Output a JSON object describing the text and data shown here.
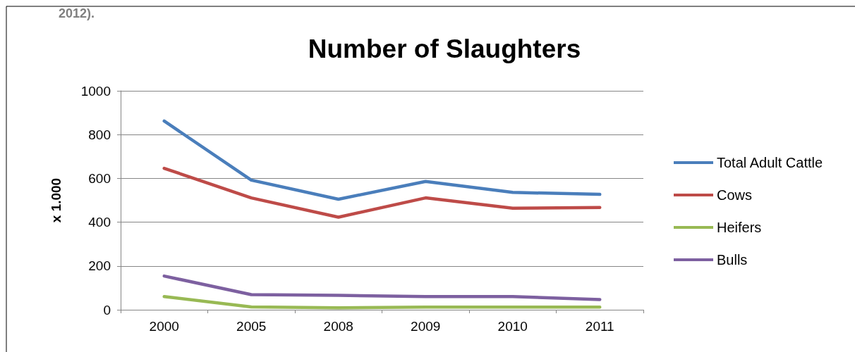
{
  "chart_data": {
    "type": "line",
    "title": "Number of Slaughters",
    "ylabel": "x 1.000",
    "annotations": [
      "2012)."
    ],
    "categories": [
      "2000",
      "2005",
      "2008",
      "2009",
      "2010",
      "2011"
    ],
    "series": [
      {
        "name": "Total Adult Cattle",
        "color": "#4a7ebb",
        "values": [
          862,
          592,
          505,
          586,
          536,
          527
        ]
      },
      {
        "name": "Cows",
        "color": "#be4b48",
        "values": [
          646,
          511,
          423,
          511,
          464,
          467
        ]
      },
      {
        "name": "Heifers",
        "color": "#98b954",
        "values": [
          60,
          13,
          9,
          12,
          12,
          12
        ]
      },
      {
        "name": "Bulls",
        "color": "#7d60a0",
        "values": [
          154,
          69,
          66,
          60,
          60,
          47
        ]
      }
    ],
    "ylim": [
      0,
      1000
    ],
    "yticks": [
      0,
      200,
      400,
      600,
      800,
      1000
    ],
    "grid": "y",
    "legend": "right",
    "marker": "none",
    "line_style": "solid"
  }
}
